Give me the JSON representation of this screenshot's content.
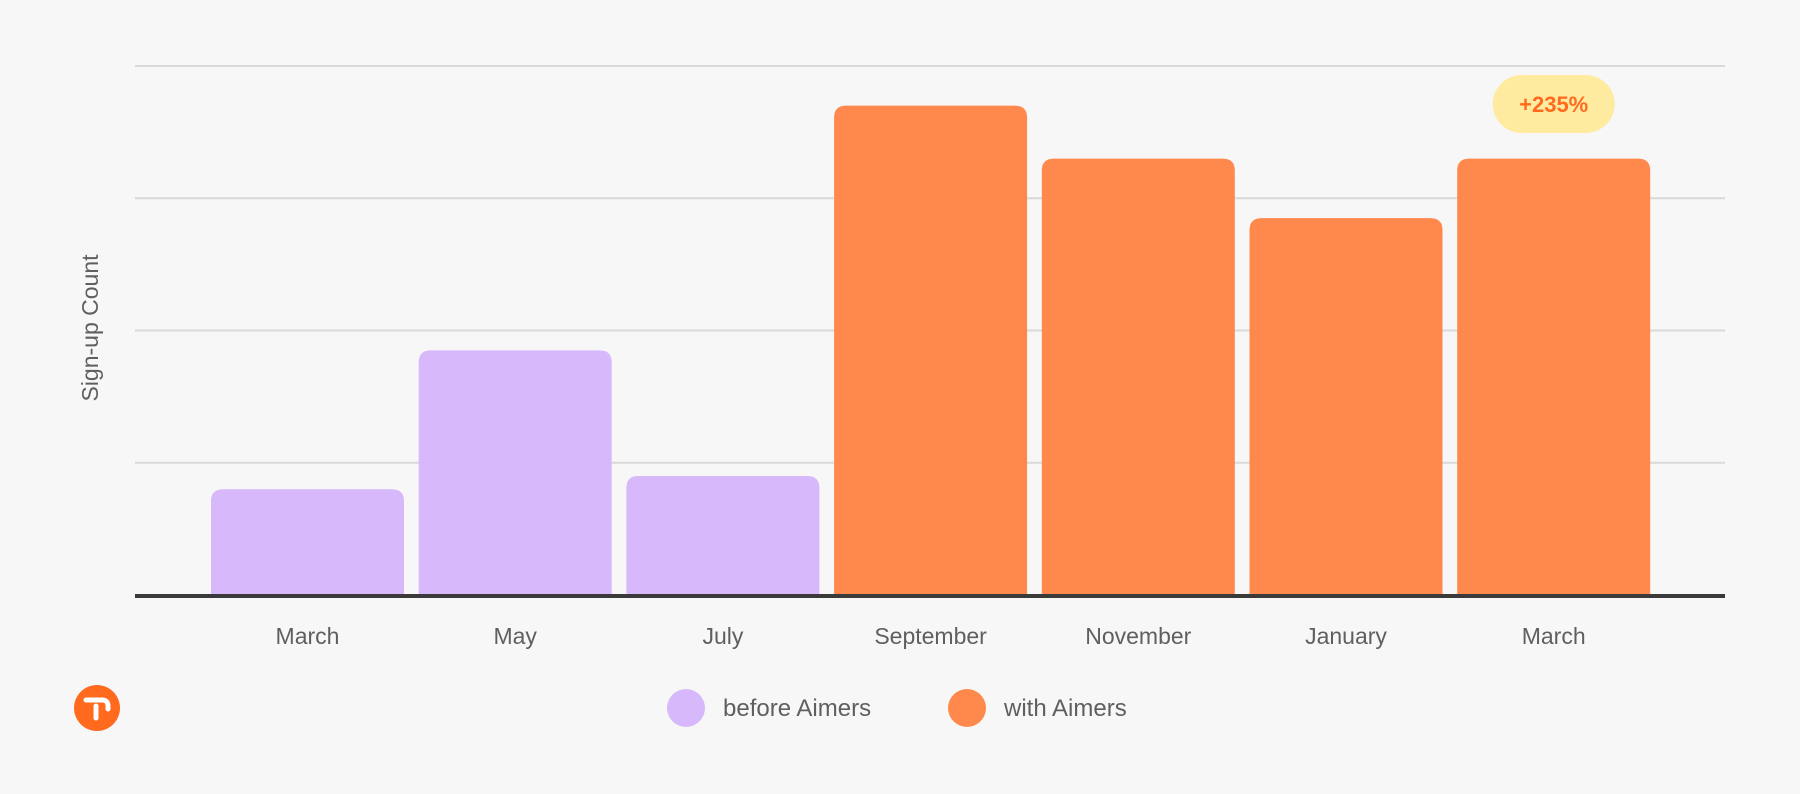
{
  "chart_data": {
    "type": "bar",
    "ylabel": "Sign-up Count",
    "xlabel": "",
    "categories": [
      "March",
      "May",
      "July",
      "September",
      "November",
      "January",
      "March"
    ],
    "values": [
      16,
      37,
      18,
      74,
      66,
      57,
      66
    ],
    "ylim": [
      0,
      80
    ],
    "grid": true,
    "series": [
      {
        "name": "before Aimers",
        "color": "#d7b8fa",
        "indices": [
          0,
          1,
          2
        ]
      },
      {
        "name": "with Aimers",
        "color": "#ff894c",
        "indices": [
          3,
          4,
          5,
          6
        ]
      }
    ],
    "annotation": {
      "text": "+235%",
      "category_index": 6
    },
    "legend_position": "bottom-center"
  },
  "colors": {
    "background": "#f7f7f7",
    "grid": "#d9d9d9",
    "axis": "#3a3a3a",
    "badge_bg": "#feeba0",
    "badge_text": "#ff6a1f",
    "logo": "#ff6a1f"
  },
  "logo": {
    "icon": "brand-logo-icon"
  }
}
